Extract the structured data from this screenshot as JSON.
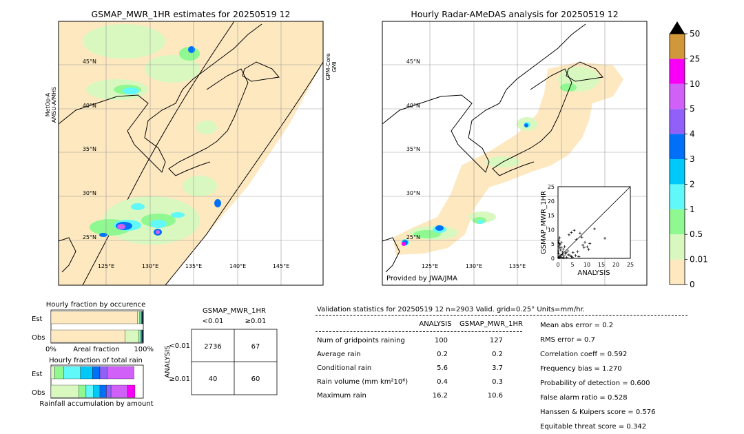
{
  "map_left": {
    "title": "GSMAP_MWR_1HR estimates for 20250519 12",
    "lat_labels": [
      "45°N",
      "40°N",
      "35°N",
      "30°N",
      "25°N"
    ],
    "lon_labels": [
      "125°E",
      "130°E",
      "135°E",
      "140°E",
      "145°E"
    ],
    "swath_label_left": [
      "MetOp-A",
      "AMSU-A/MHS"
    ],
    "swath_label_right": [
      "GPM-Core",
      "GMI"
    ]
  },
  "map_right": {
    "title": "Hourly Radar-AMeDAS analysis for 20250519 12",
    "lat_labels": [
      "45°N",
      "40°N",
      "35°N",
      "30°N",
      "25°N"
    ],
    "lon_labels": [
      "125°E",
      "130°E",
      "135°E"
    ],
    "credit": "Provided by JWA/JMA"
  },
  "colorbar": {
    "tick_labels": [
      "0",
      "0.01",
      "0.5",
      "1",
      "2",
      "3",
      "4",
      "5",
      "10",
      "25",
      "50"
    ],
    "colors": [
      "#fde8c0",
      "#d8f8c0",
      "#90f890",
      "#60f8f8",
      "#00c8f8",
      "#0070f8",
      "#9060f8",
      "#d060f8",
      "#f800f8",
      "#d09838"
    ],
    "extend_color": "#000000"
  },
  "chart_data": [
    {
      "type": "scatter",
      "ylabel": "GSMAP_MWR_1HR",
      "xlabel": "ANALYSIS",
      "xlim": [
        0,
        25
      ],
      "ylim": [
        0,
        25
      ],
      "xticks": [
        "0",
        "5",
        "10",
        "15",
        "20",
        "25"
      ],
      "yticks": [
        "0",
        "5",
        "10",
        "15",
        "20",
        "25"
      ],
      "points": [
        [
          0.2,
          0.3
        ],
        [
          0.5,
          0.2
        ],
        [
          0.8,
          0.5
        ],
        [
          1.0,
          1.2
        ],
        [
          1.3,
          0.4
        ],
        [
          1.6,
          2.2
        ],
        [
          0.4,
          3.6
        ],
        [
          0.7,
          4.8
        ],
        [
          1.2,
          5.6
        ],
        [
          2.1,
          0.8
        ],
        [
          2.6,
          1.6
        ],
        [
          3.0,
          0.3
        ],
        [
          3.4,
          2.6
        ],
        [
          0.3,
          6.4
        ],
        [
          0.6,
          7.2
        ],
        [
          1.8,
          3.2
        ],
        [
          2.3,
          4.1
        ],
        [
          4.1,
          1.1
        ],
        [
          4.6,
          0.6
        ],
        [
          5.2,
          2.0
        ],
        [
          3.8,
          8.2
        ],
        [
          4.6,
          9.0
        ],
        [
          5.6,
          9.8
        ],
        [
          6.3,
          6.6
        ],
        [
          7.6,
          8.8
        ],
        [
          8.6,
          4.6
        ],
        [
          9.3,
          5.6
        ],
        [
          10.1,
          4.0
        ],
        [
          10.6,
          3.1
        ],
        [
          11.0,
          5.2
        ],
        [
          8.2,
          7.4
        ],
        [
          12.6,
          10.3
        ],
        [
          16.2,
          7.0
        ],
        [
          6.8,
          2.3
        ],
        [
          9.0,
          3.8
        ],
        [
          0.2,
          1.8
        ],
        [
          0.1,
          2.6
        ],
        [
          0.3,
          4.3
        ],
        [
          0.5,
          5.1
        ],
        [
          0.9,
          2.9
        ],
        [
          1.1,
          3.8
        ],
        [
          1.5,
          1.4
        ],
        [
          2.8,
          2.0
        ],
        [
          3.6,
          1.2
        ],
        [
          5.0,
          0.4
        ],
        [
          6.1,
          1.0
        ],
        [
          7.2,
          0.6
        ],
        [
          0.6,
          0.8
        ],
        [
          1.9,
          0.2
        ],
        [
          0.2,
          5.6
        ]
      ]
    },
    {
      "type": "bar",
      "title": "Hourly fraction by occurence",
      "xlabel": "Areal fraction",
      "xtick_left": "0%",
      "xtick_right": "100%",
      "categories": [
        "Est",
        "Obs"
      ],
      "series": [
        {
          "color": "#fde8c0",
          "values": [
            0.935,
            0.805
          ]
        },
        {
          "color": "#d8f8c0",
          "values": [
            0.025,
            0.145
          ]
        },
        {
          "color": "#90f890",
          "values": [
            0.012,
            0.02
          ]
        },
        {
          "color": "#60f8f8",
          "values": [
            0.008,
            0.01
          ]
        },
        {
          "color": "#00c8f8",
          "values": [
            0.007,
            0.007
          ]
        },
        {
          "color": "#0070f8",
          "values": [
            0.005,
            0.005
          ]
        },
        {
          "color": "#9060f8",
          "values": [
            0.003,
            0.003
          ]
        },
        {
          "color": "#d060f8",
          "values": [
            0.002,
            0.002
          ]
        },
        {
          "color": "#f800f8",
          "values": [
            0.002,
            0.002
          ]
        },
        {
          "color": "#d09838",
          "values": [
            0.001,
            0.001
          ]
        }
      ]
    },
    {
      "type": "bar",
      "title": "Hourly fraction of total rain",
      "xlabel": "Rainfall accumulation by amount",
      "categories": [
        "Est",
        "Obs"
      ],
      "series": [
        {
          "color": "#d8f8c0",
          "values": [
            0.04,
            0.3
          ]
        },
        {
          "color": "#90f890",
          "values": [
            0.1,
            0.08
          ]
        },
        {
          "color": "#60f8f8",
          "values": [
            0.18,
            0.08
          ]
        },
        {
          "color": "#00c8f8",
          "values": [
            0.13,
            0.07
          ]
        },
        {
          "color": "#0070f8",
          "values": [
            0.08,
            0.07
          ]
        },
        {
          "color": "#9060f8",
          "values": [
            0.08,
            0.05
          ]
        },
        {
          "color": "#d060f8",
          "values": [
            0.29,
            0.18
          ]
        },
        {
          "color": "#f800f8",
          "values": [
            0.0,
            0.08
          ]
        },
        {
          "color": "#d09838",
          "values": [
            0.0,
            0.0
          ]
        }
      ]
    },
    {
      "type": "table",
      "title": "GSMAP_MWR_1HR",
      "col_headers": [
        "<0.01",
        "≥0.01"
      ],
      "side_label": "ANALYSIS",
      "row_headers": [
        "<0.01",
        "≥0.01"
      ],
      "cells": [
        [
          "2736",
          "67"
        ],
        [
          "40",
          "60"
        ]
      ]
    }
  ],
  "validation": {
    "header": "Validation statistics for 20250519 12  n=2903 Valid. grid=0.25° Units=mm/hr.",
    "col_analysis": "ANALYSIS",
    "col_gsmap": "GSMAP_MWR_1HR",
    "rows": [
      {
        "label": "Num of gridpoints raining",
        "analysis": "100",
        "gsmap": "127"
      },
      {
        "label": "Average rain",
        "analysis": "0.2",
        "gsmap": "0.2"
      },
      {
        "label": "Conditional rain",
        "analysis": "5.6",
        "gsmap": "3.7"
      },
      {
        "label": "Rain volume (mm km²10⁶)",
        "analysis": "0.4",
        "gsmap": "0.3"
      },
      {
        "label": "Maximum rain",
        "analysis": "16.2",
        "gsmap": "10.6"
      }
    ],
    "scores": [
      "Mean abs error =    0.2",
      "RMS error =    0.7",
      "Correlation coeff =  0.592",
      "Frequency bias =  1.270",
      "Probability of detection =  0.600",
      "False alarm ratio =  0.528",
      "Hanssen & Kuipers score =  0.576",
      "Equitable threat score =  0.342"
    ]
  }
}
